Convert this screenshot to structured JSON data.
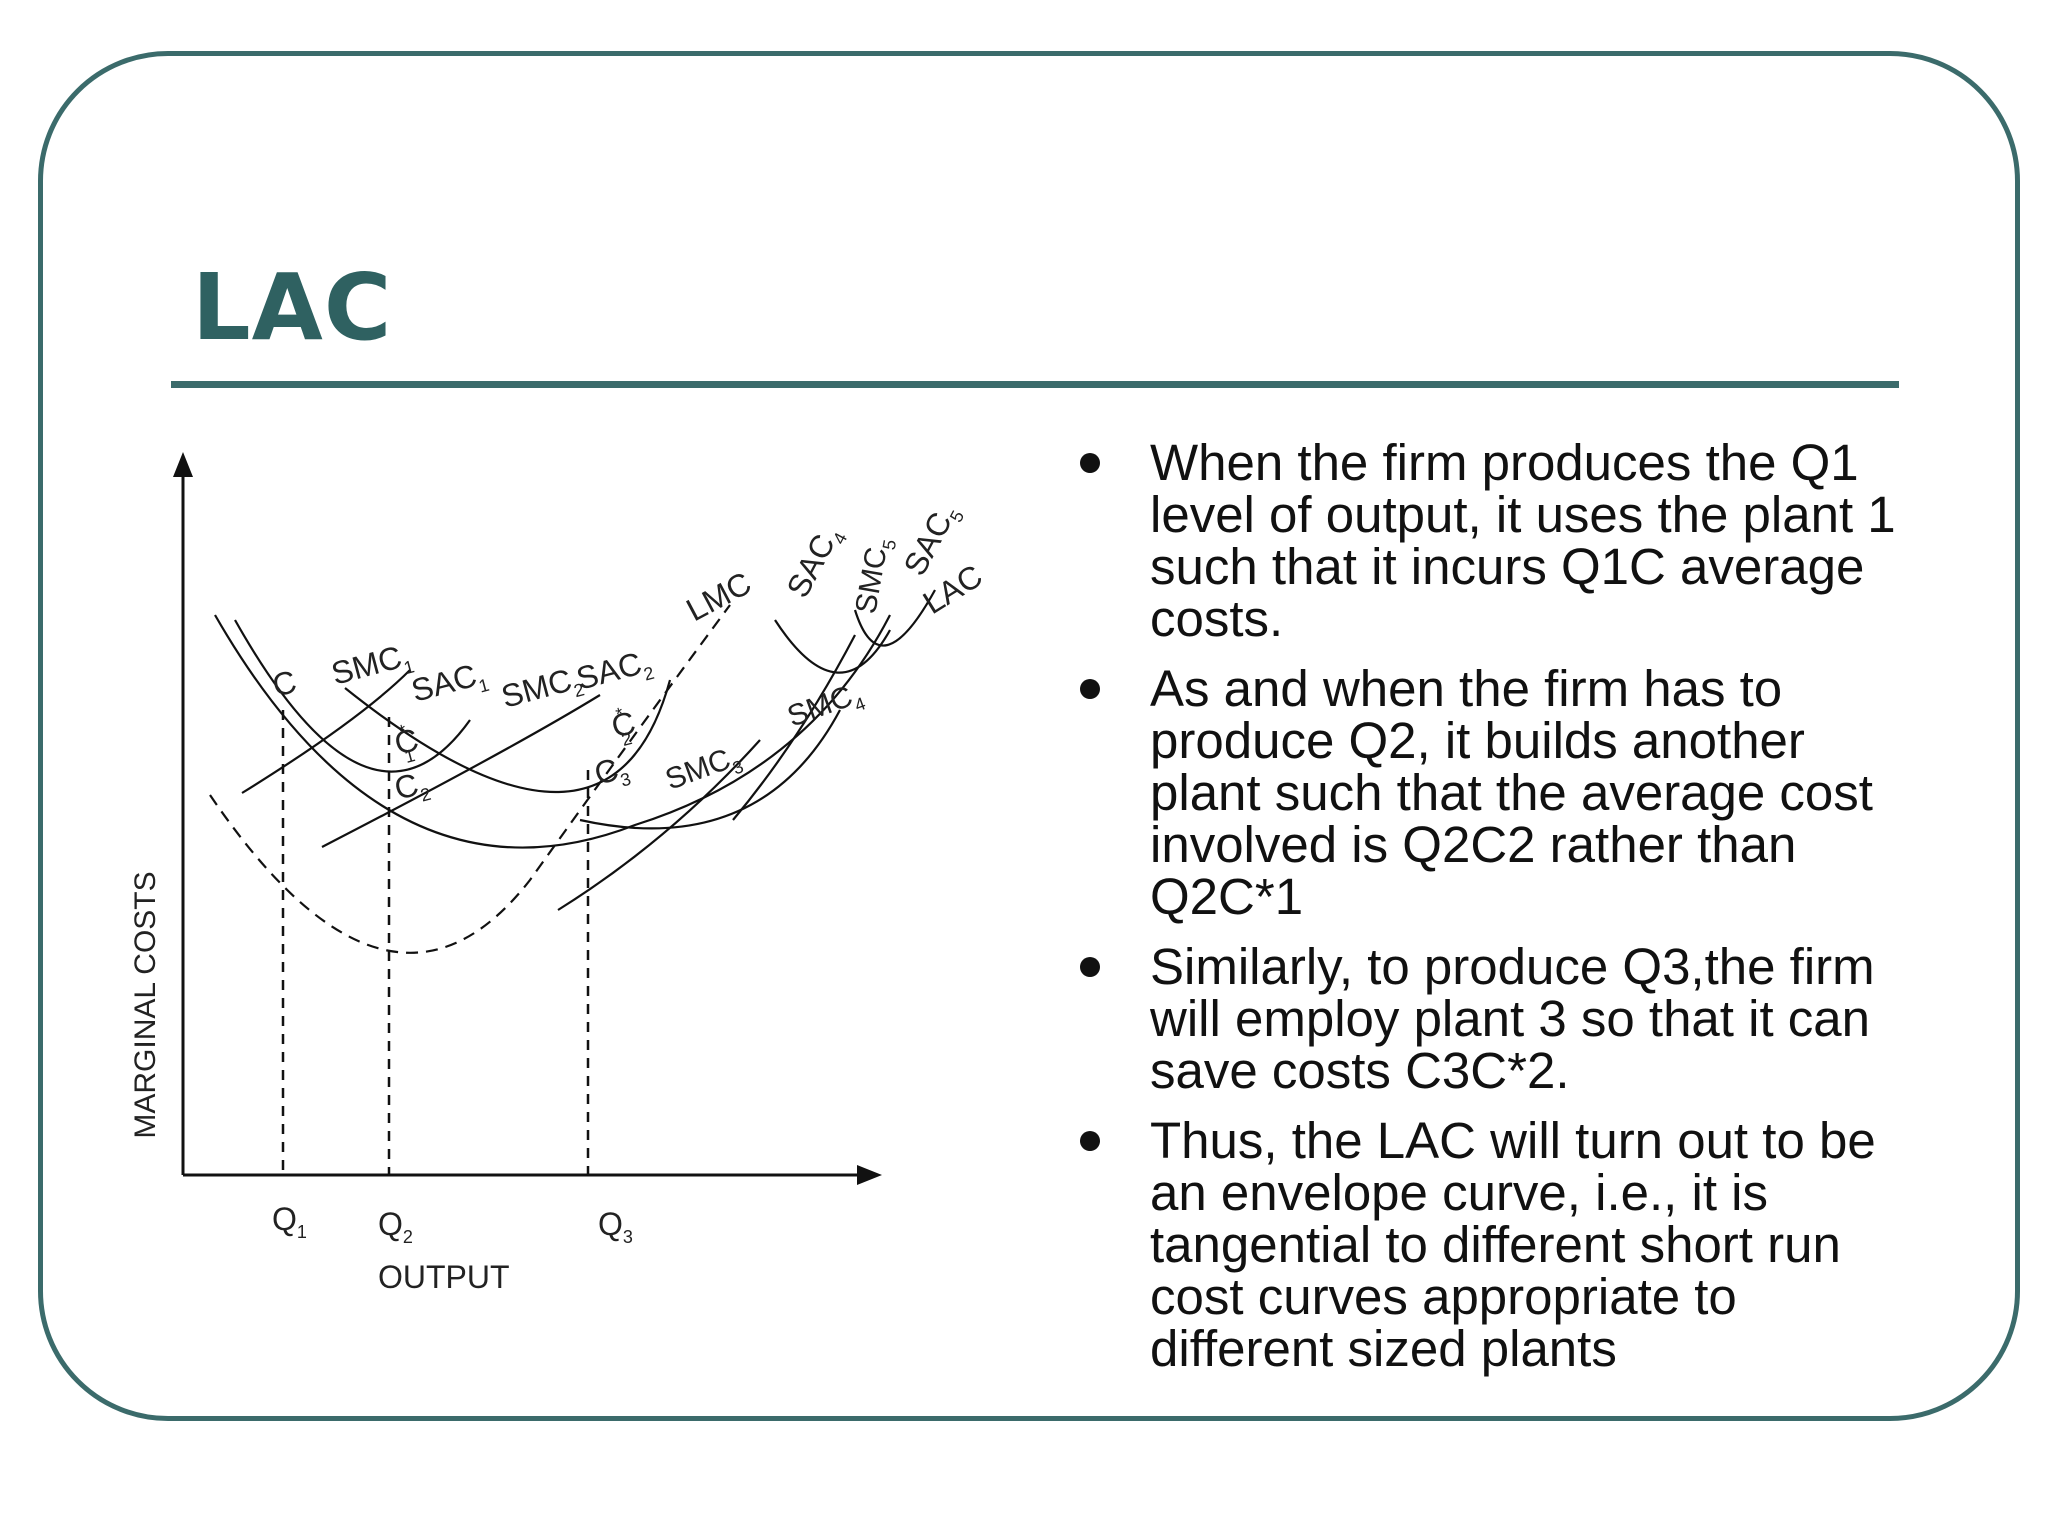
{
  "slide": {
    "title": "LAC",
    "bullets": [
      "When the firm produces the Q1 level of output, it uses the plant 1 such that it incurs Q1C average costs.",
      "As and when the firm has to produce Q2, it builds another plant such that the average cost involved is Q2C2 rather than Q2C*1",
      "Similarly, to produce Q3,the firm will employ plant 3 so that it can save costs C3C*2.",
      "Thus, the LAC will turn out to be an envelope curve, i.e., it is tangential to different short run cost curves appropriate to different sized plants"
    ]
  },
  "diagram": {
    "y_axis_label": "MARGINAL COSTS",
    "x_axis_label": "OUTPUT",
    "x_ticks": [
      {
        "main": "Q",
        "sub": "1"
      },
      {
        "main": "Q",
        "sub": "2"
      },
      {
        "main": "Q",
        "sub": "3"
      }
    ],
    "curve_labels": {
      "smc1": {
        "main": "SMC",
        "sub": "1"
      },
      "sac1": {
        "main": "SAC",
        "sub": "1"
      },
      "smc2": {
        "main": "SMC",
        "sub": "2"
      },
      "sac2": {
        "main": "SAC",
        "sub": "2"
      },
      "lmc": {
        "main": "LMC",
        "sub": ""
      },
      "sac4": {
        "main": "SAC",
        "sub": "4"
      },
      "smc5": {
        "main": "SMC",
        "sub": "5"
      },
      "sac5": {
        "main": "SAC",
        "sub": "5"
      },
      "lac": {
        "main": "LAC",
        "sub": ""
      },
      "smc3": {
        "main": "SMC",
        "sub": "3"
      },
      "smc4": {
        "main": "SMC",
        "sub": "4"
      }
    },
    "point_labels": {
      "c": {
        "main": "C",
        "sub": "",
        "sup": ""
      },
      "c1_star": {
        "main": "C",
        "sub": "1",
        "sup": "*"
      },
      "c2": {
        "main": "C",
        "sub": "2",
        "sup": ""
      },
      "c2_star": {
        "main": "C",
        "sub": "2",
        "sup": "*"
      },
      "c3": {
        "main": "C",
        "sub": "3",
        "sup": ""
      }
    }
  }
}
